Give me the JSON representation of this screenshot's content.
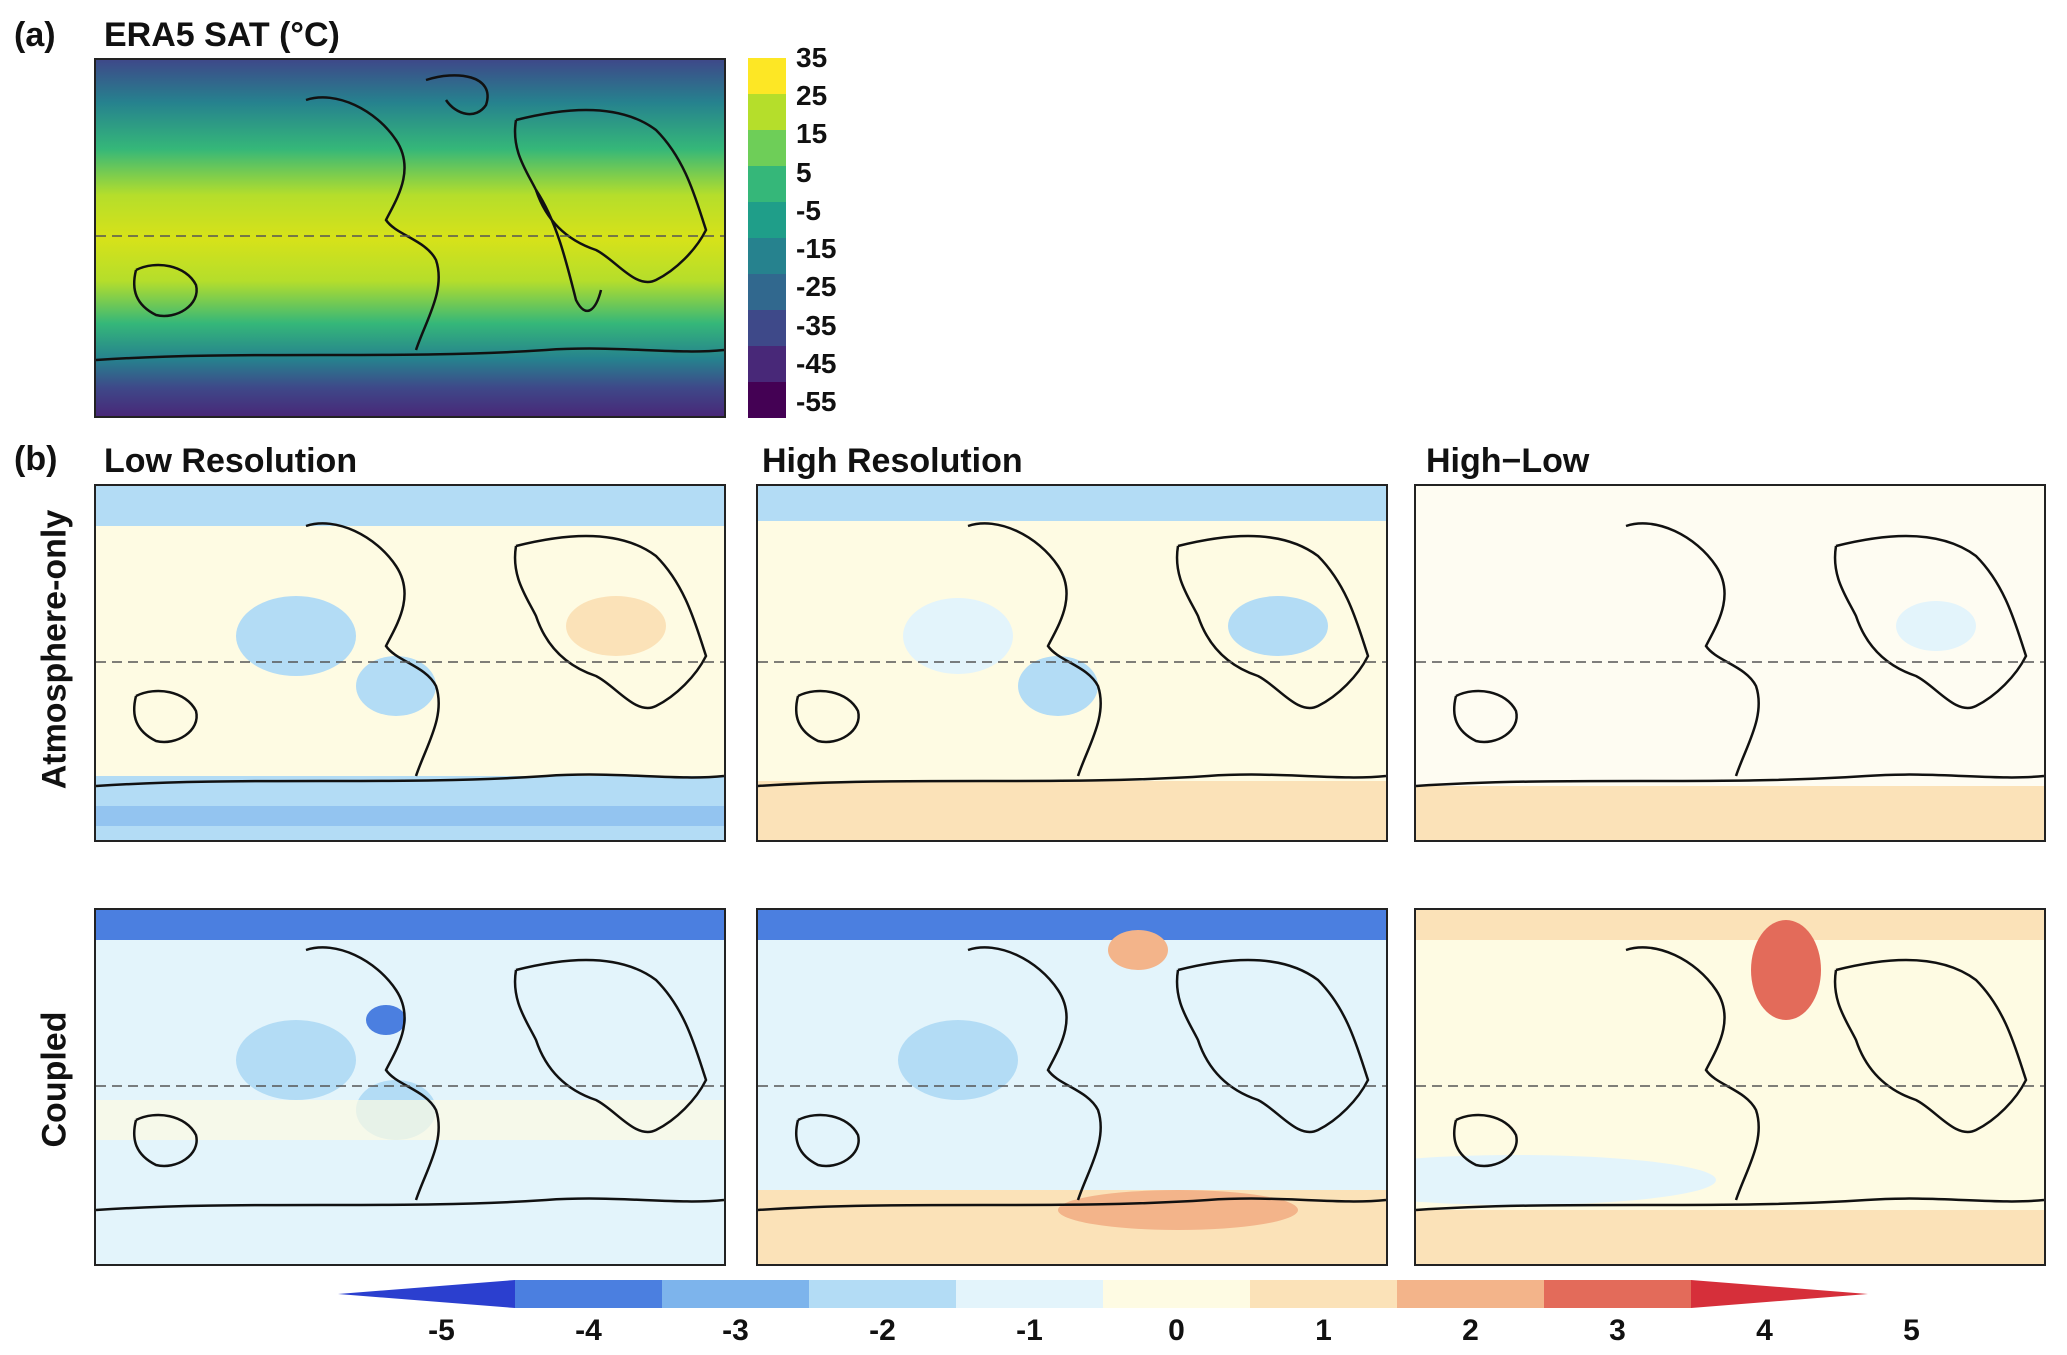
{
  "panel_a": {
    "label": "(a)",
    "title": "ERA5 SAT (°C)",
    "colorbar_ticks": [
      "35",
      "25",
      "15",
      "5",
      "-5",
      "-15",
      "-25",
      "-35",
      "-45",
      "-55"
    ]
  },
  "panel_b": {
    "label": "(b)",
    "column_titles": [
      "Low Resolution",
      "High Resolution",
      "High−Low"
    ],
    "row_labels": [
      "Atmosphere-only",
      "Coupled"
    ],
    "colorbar_ticks": [
      "-5",
      "-4",
      "-3",
      "-2",
      "-1",
      "0",
      "1",
      "2",
      "3",
      "4",
      "5"
    ]
  },
  "colors": {
    "viridis": [
      "#fde725",
      "#b5de2b",
      "#6ece58",
      "#35b779",
      "#1f9e89",
      "#26828e",
      "#31688e",
      "#3e4989",
      "#482878",
      "#440154"
    ],
    "diverging": [
      "#2b3fcf",
      "#4b7fe0",
      "#7db4ec",
      "#b3dcf5",
      "#e3f4fb",
      "#fefbe3",
      "#fbe2b8",
      "#f3b48a",
      "#e36b5a",
      "#d62f3a"
    ]
  }
}
